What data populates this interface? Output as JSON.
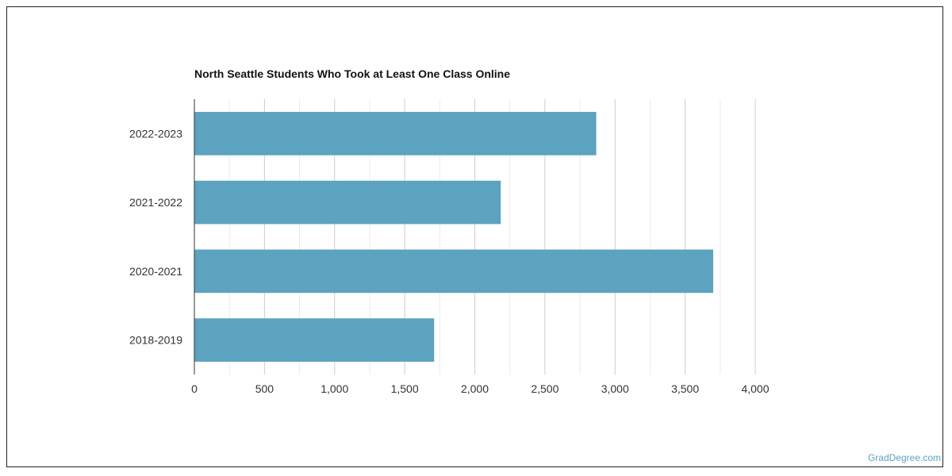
{
  "chart_data": {
    "type": "bar",
    "orientation": "horizontal",
    "title": "North Seattle Students Who Took at Least One Class Online",
    "xlabel": "",
    "ylabel": "",
    "categories": [
      "2022-2023",
      "2021-2022",
      "2020-2021",
      "2018-2019"
    ],
    "values": [
      2866,
      2185,
      3700,
      1710
    ],
    "xlim": [
      0,
      4000
    ],
    "ticks": [
      "0",
      "500",
      "1,000",
      "1,500",
      "2,000",
      "2,500",
      "3,000",
      "3,500",
      "4,000"
    ],
    "tick_values": [
      0,
      500,
      1000,
      1500,
      2000,
      2500,
      3000,
      3500,
      4000
    ],
    "grid": true,
    "bar_color": "#5ba3bf",
    "grid_color": "#dddddd"
  },
  "footer": {
    "watermark": "GradDegree.com"
  }
}
